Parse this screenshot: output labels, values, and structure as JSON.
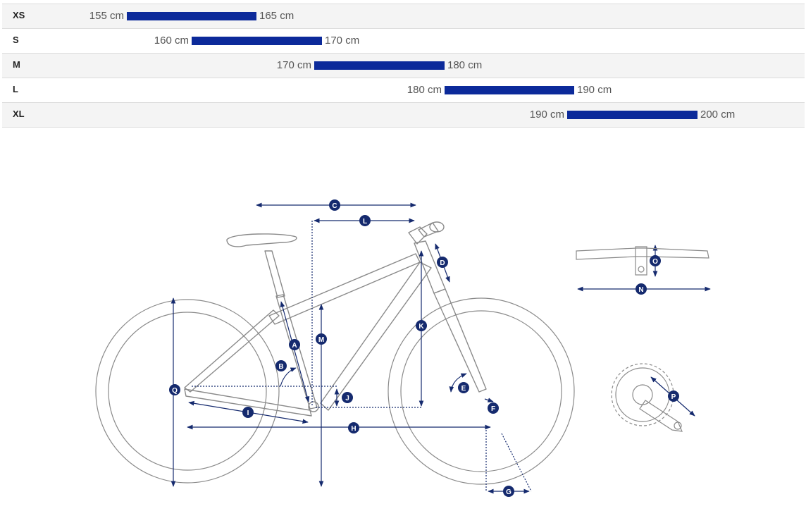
{
  "sizes": [
    {
      "label": "XS",
      "min": "155 cm",
      "max": "165 cm",
      "min_cm": 155,
      "max_cm": 165
    },
    {
      "label": "S",
      "min": "160 cm",
      "max": "170 cm",
      "min_cm": 160,
      "max_cm": 170
    },
    {
      "label": "M",
      "min": "170 cm",
      "max": "180 cm",
      "min_cm": 170,
      "max_cm": 180
    },
    {
      "label": "L",
      "min": "180 cm",
      "max": "190 cm",
      "min_cm": 180,
      "max_cm": 190
    },
    {
      "label": "XL",
      "min": "190 cm",
      "max": "200 cm",
      "min_cm": 190,
      "max_cm": 200
    }
  ],
  "geometry_markers": [
    "A",
    "B",
    "C",
    "D",
    "E",
    "F",
    "G",
    "H",
    "I",
    "J",
    "K",
    "L",
    "M",
    "N",
    "O",
    "P",
    "Q"
  ],
  "colors": {
    "bar": "#0c2a9a",
    "marker": "#152a6e",
    "outline": "#8a8a8a"
  }
}
